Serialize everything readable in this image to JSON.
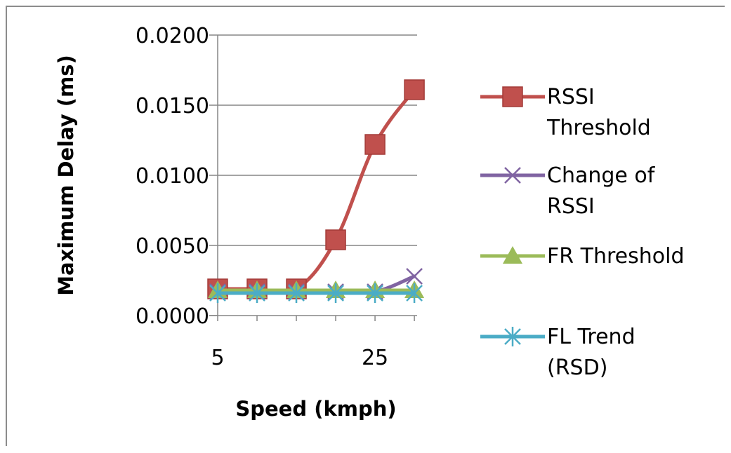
{
  "chart_data": {
    "type": "line",
    "title": "",
    "xlabel": "Speed (kmph)",
    "ylabel": "Maximum Delay (ms)",
    "x": [
      5,
      10,
      15,
      20,
      25,
      30
    ],
    "x_tick_labels": [
      "5",
      "25"
    ],
    "y_tick_labels": [
      "0.0000",
      "0.0050",
      "0.0100",
      "0.0150",
      "0.0200"
    ],
    "ylim": [
      0,
      0.02
    ],
    "grid": "horizontal",
    "legend_position": "right",
    "series": [
      {
        "name": "RSSI Threshold",
        "name_lines": [
          "RSSI",
          "Threshold"
        ],
        "color": "#c0504d",
        "marker": "square",
        "values": [
          0.0019,
          0.0019,
          0.0019,
          0.0054,
          0.0122,
          0.0161
        ]
      },
      {
        "name": "Change of RSSI",
        "name_lines": [
          "Change of",
          "RSSI"
        ],
        "color": "#8064a2",
        "marker": "x",
        "values": [
          0.0017,
          0.0017,
          0.0017,
          0.0017,
          0.0017,
          0.0028
        ]
      },
      {
        "name": "FR Threshold",
        "name_lines": [
          "FR Threshold"
        ],
        "color": "#9bbb59",
        "marker": "triangle",
        "values": [
          0.0018,
          0.0018,
          0.0018,
          0.0018,
          0.0018,
          0.0018
        ]
      },
      {
        "name": "FL Trend (RSD)",
        "name_lines": [
          "FL Trend",
          "(RSD)"
        ],
        "color": "#4bacc6",
        "marker": "star",
        "values": [
          0.0016,
          0.0016,
          0.0016,
          0.0016,
          0.0016,
          0.0016
        ]
      }
    ]
  }
}
